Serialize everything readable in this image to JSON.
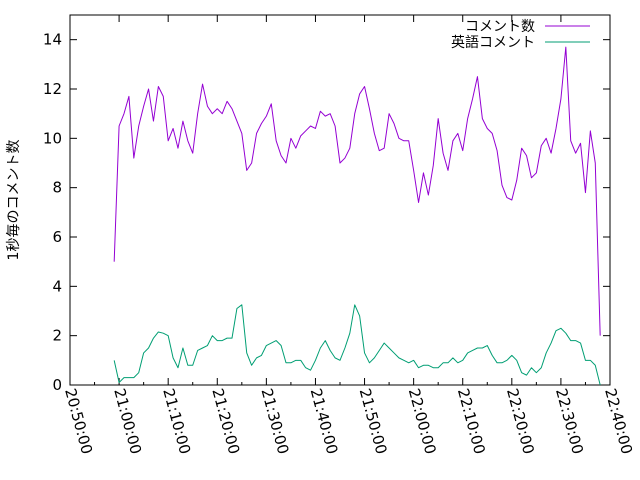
{
  "chart_data": {
    "type": "line",
    "title": "",
    "xlabel": "",
    "ylabel": "1秒毎のコメント数",
    "xlim": [
      "20:50:00",
      "22:40:00"
    ],
    "ylim": [
      0,
      15
    ],
    "x_ticks": [
      "20:50:00",
      "21:00:00",
      "21:10:00",
      "21:20:00",
      "21:30:00",
      "21:40:00",
      "21:50:00",
      "22:00:00",
      "22:10:00",
      "22:20:00",
      "22:30:00",
      "22:40:00"
    ],
    "y_ticks": [
      0,
      2,
      4,
      6,
      8,
      10,
      12,
      14
    ],
    "grid": false,
    "legend_position": "top-right",
    "series": [
      {
        "name": "コメント数",
        "color": "#9400d3",
        "points": [
          [
            "20:59:00",
            5.0
          ],
          [
            "21:00:00",
            10.5
          ],
          [
            "21:01:00",
            11.0
          ],
          [
            "21:02:00",
            11.7
          ],
          [
            "21:03:00",
            9.2
          ],
          [
            "21:04:00",
            10.5
          ],
          [
            "21:05:00",
            11.3
          ],
          [
            "21:06:00",
            12.0
          ],
          [
            "21:07:00",
            10.7
          ],
          [
            "21:08:00",
            12.1
          ],
          [
            "21:09:00",
            11.7
          ],
          [
            "21:10:00",
            9.9
          ],
          [
            "21:11:00",
            10.4
          ],
          [
            "21:12:00",
            9.6
          ],
          [
            "21:13:00",
            10.7
          ],
          [
            "21:14:00",
            9.9
          ],
          [
            "21:15:00",
            9.4
          ],
          [
            "21:16:00",
            11.0
          ],
          [
            "21:17:00",
            12.2
          ],
          [
            "21:18:00",
            11.3
          ],
          [
            "21:19:00",
            11.0
          ],
          [
            "21:20:00",
            11.2
          ],
          [
            "21:21:00",
            11.0
          ],
          [
            "21:22:00",
            11.5
          ],
          [
            "21:23:00",
            11.2
          ],
          [
            "21:24:00",
            10.7
          ],
          [
            "21:25:00",
            10.2
          ],
          [
            "21:26:00",
            8.7
          ],
          [
            "21:27:00",
            9.0
          ],
          [
            "21:28:00",
            10.2
          ],
          [
            "21:29:00",
            10.6
          ],
          [
            "21:30:00",
            10.9
          ],
          [
            "21:31:00",
            11.4
          ],
          [
            "21:32:00",
            9.9
          ],
          [
            "21:33:00",
            9.3
          ],
          [
            "21:34:00",
            9.0
          ],
          [
            "21:35:00",
            10.0
          ],
          [
            "21:36:00",
            9.6
          ],
          [
            "21:37:00",
            10.1
          ],
          [
            "21:38:00",
            10.3
          ],
          [
            "21:39:00",
            10.5
          ],
          [
            "21:40:00",
            10.4
          ],
          [
            "21:41:00",
            11.1
          ],
          [
            "21:42:00",
            10.9
          ],
          [
            "21:43:00",
            11.0
          ],
          [
            "21:44:00",
            10.5
          ],
          [
            "21:45:00",
            9.0
          ],
          [
            "21:46:00",
            9.2
          ],
          [
            "21:47:00",
            9.6
          ],
          [
            "21:48:00",
            11.0
          ],
          [
            "21:49:00",
            11.8
          ],
          [
            "21:50:00",
            12.1
          ],
          [
            "21:51:00",
            11.2
          ],
          [
            "21:52:00",
            10.2
          ],
          [
            "21:53:00",
            9.5
          ],
          [
            "21:54:00",
            9.6
          ],
          [
            "21:55:00",
            11.0
          ],
          [
            "21:56:00",
            10.6
          ],
          [
            "21:57:00",
            10.0
          ],
          [
            "21:58:00",
            9.9
          ],
          [
            "21:59:00",
            9.9
          ],
          [
            "22:00:00",
            8.7
          ],
          [
            "22:01:00",
            7.4
          ],
          [
            "22:02:00",
            8.6
          ],
          [
            "22:03:00",
            7.7
          ],
          [
            "22:04:00",
            8.9
          ],
          [
            "22:05:00",
            10.8
          ],
          [
            "22:06:00",
            9.4
          ],
          [
            "22:07:00",
            8.7
          ],
          [
            "22:08:00",
            9.9
          ],
          [
            "22:09:00",
            10.2
          ],
          [
            "22:10:00",
            9.5
          ],
          [
            "22:11:00",
            10.8
          ],
          [
            "22:12:00",
            11.6
          ],
          [
            "22:13:00",
            12.5
          ],
          [
            "22:14:00",
            10.8
          ],
          [
            "22:15:00",
            10.4
          ],
          [
            "22:16:00",
            10.2
          ],
          [
            "22:17:00",
            9.5
          ],
          [
            "22:18:00",
            8.1
          ],
          [
            "22:19:00",
            7.6
          ],
          [
            "22:20:00",
            7.5
          ],
          [
            "22:21:00",
            8.3
          ],
          [
            "22:22:00",
            9.6
          ],
          [
            "22:23:00",
            9.3
          ],
          [
            "22:24:00",
            8.4
          ],
          [
            "22:25:00",
            8.6
          ],
          [
            "22:26:00",
            9.7
          ],
          [
            "22:27:00",
            10.0
          ],
          [
            "22:28:00",
            9.4
          ],
          [
            "22:29:00",
            10.4
          ],
          [
            "22:30:00",
            11.6
          ],
          [
            "22:31:00",
            13.7
          ],
          [
            "22:32:00",
            9.9
          ],
          [
            "22:33:00",
            9.4
          ],
          [
            "22:34:00",
            9.8
          ],
          [
            "22:35:00",
            7.8
          ],
          [
            "22:36:00",
            10.3
          ],
          [
            "22:37:00",
            9.0
          ],
          [
            "22:38:00",
            2.0
          ]
        ]
      },
      {
        "name": "英語コメント",
        "color": "#009e73",
        "points": [
          [
            "20:59:00",
            1.0
          ],
          [
            "21:00:00",
            0.1
          ],
          [
            "21:01:00",
            0.3
          ],
          [
            "21:02:00",
            0.3
          ],
          [
            "21:03:00",
            0.3
          ],
          [
            "21:04:00",
            0.5
          ],
          [
            "21:05:00",
            1.3
          ],
          [
            "21:06:00",
            1.5
          ],
          [
            "21:07:00",
            1.9
          ],
          [
            "21:08:00",
            2.15
          ],
          [
            "21:09:00",
            2.1
          ],
          [
            "21:10:00",
            2.0
          ],
          [
            "21:11:00",
            1.1
          ],
          [
            "21:12:00",
            0.7
          ],
          [
            "21:13:00",
            1.5
          ],
          [
            "21:14:00",
            0.8
          ],
          [
            "21:15:00",
            0.8
          ],
          [
            "21:16:00",
            1.4
          ],
          [
            "21:17:00",
            1.5
          ],
          [
            "21:18:00",
            1.6
          ],
          [
            "21:19:00",
            2.0
          ],
          [
            "21:20:00",
            1.8
          ],
          [
            "21:21:00",
            1.8
          ],
          [
            "21:22:00",
            1.9
          ],
          [
            "21:23:00",
            1.9
          ],
          [
            "21:24:00",
            3.1
          ],
          [
            "21:25:00",
            3.25
          ],
          [
            "21:26:00",
            1.3
          ],
          [
            "21:27:00",
            0.8
          ],
          [
            "21:28:00",
            1.1
          ],
          [
            "21:29:00",
            1.2
          ],
          [
            "21:30:00",
            1.6
          ],
          [
            "21:31:00",
            1.7
          ],
          [
            "21:32:00",
            1.8
          ],
          [
            "21:33:00",
            1.6
          ],
          [
            "21:34:00",
            0.9
          ],
          [
            "21:35:00",
            0.9
          ],
          [
            "21:36:00",
            1.0
          ],
          [
            "21:37:00",
            1.0
          ],
          [
            "21:38:00",
            0.7
          ],
          [
            "21:39:00",
            0.6
          ],
          [
            "21:40:00",
            1.0
          ],
          [
            "21:41:00",
            1.5
          ],
          [
            "21:42:00",
            1.8
          ],
          [
            "21:43:00",
            1.4
          ],
          [
            "21:44:00",
            1.1
          ],
          [
            "21:45:00",
            1.0
          ],
          [
            "21:46:00",
            1.5
          ],
          [
            "21:47:00",
            2.1
          ],
          [
            "21:48:00",
            3.25
          ],
          [
            "21:49:00",
            2.8
          ],
          [
            "21:50:00",
            1.3
          ],
          [
            "21:51:00",
            0.9
          ],
          [
            "21:52:00",
            1.1
          ],
          [
            "21:53:00",
            1.4
          ],
          [
            "21:54:00",
            1.7
          ],
          [
            "21:55:00",
            1.5
          ],
          [
            "21:56:00",
            1.3
          ],
          [
            "21:57:00",
            1.1
          ],
          [
            "21:58:00",
            1.0
          ],
          [
            "21:59:00",
            0.9
          ],
          [
            "22:00:00",
            1.0
          ],
          [
            "22:01:00",
            0.7
          ],
          [
            "22:02:00",
            0.8
          ],
          [
            "22:03:00",
            0.8
          ],
          [
            "22:04:00",
            0.7
          ],
          [
            "22:05:00",
            0.7
          ],
          [
            "22:06:00",
            0.9
          ],
          [
            "22:07:00",
            0.9
          ],
          [
            "22:08:00",
            1.1
          ],
          [
            "22:09:00",
            0.9
          ],
          [
            "22:10:00",
            1.0
          ],
          [
            "22:11:00",
            1.3
          ],
          [
            "22:12:00",
            1.4
          ],
          [
            "22:13:00",
            1.5
          ],
          [
            "22:14:00",
            1.5
          ],
          [
            "22:15:00",
            1.6
          ],
          [
            "22:16:00",
            1.2
          ],
          [
            "22:17:00",
            0.9
          ],
          [
            "22:18:00",
            0.9
          ],
          [
            "22:19:00",
            1.0
          ],
          [
            "22:20:00",
            1.2
          ],
          [
            "22:21:00",
            1.0
          ],
          [
            "22:22:00",
            0.5
          ],
          [
            "22:23:00",
            0.4
          ],
          [
            "22:24:00",
            0.7
          ],
          [
            "22:25:00",
            0.5
          ],
          [
            "22:26:00",
            0.7
          ],
          [
            "22:27:00",
            1.3
          ],
          [
            "22:28:00",
            1.7
          ],
          [
            "22:29:00",
            2.2
          ],
          [
            "22:30:00",
            2.3
          ],
          [
            "22:31:00",
            2.1
          ],
          [
            "22:32:00",
            1.8
          ],
          [
            "22:33:00",
            1.8
          ],
          [
            "22:34:00",
            1.7
          ],
          [
            "22:35:00",
            1.0
          ],
          [
            "22:36:00",
            1.0
          ],
          [
            "22:37:00",
            0.8
          ],
          [
            "22:38:00",
            0.0
          ]
        ]
      }
    ]
  }
}
